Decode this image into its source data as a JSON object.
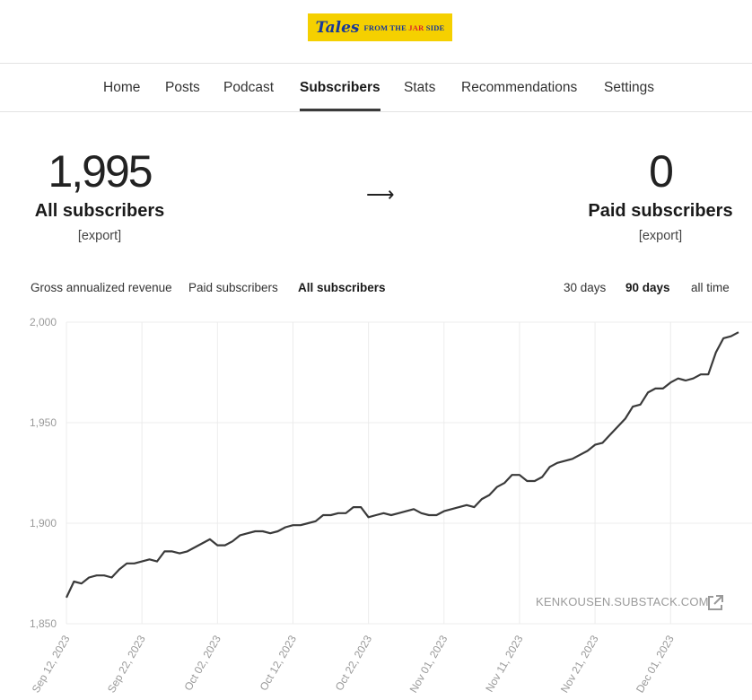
{
  "logo": {
    "main": "Tales",
    "tagline_pre": "FROM THE",
    "tagline_jar": "JAR",
    "tagline_post": "SIDE"
  },
  "nav": {
    "items": [
      {
        "label": "Home"
      },
      {
        "label": "Posts"
      },
      {
        "label": "Podcast"
      },
      {
        "label": "Subscribers",
        "active": true
      },
      {
        "label": "Stats"
      },
      {
        "label": "Recommendations"
      },
      {
        "label": "Settings"
      }
    ]
  },
  "summary": {
    "all": {
      "value": "1,995",
      "label": "All subscribers",
      "export": "[export]"
    },
    "arrow": "⟶",
    "paid": {
      "value": "0",
      "label": "Paid subscribers",
      "export": "[export]"
    }
  },
  "metric_tabs": [
    {
      "label": "Gross annualized revenue"
    },
    {
      "label": "Paid subscribers"
    },
    {
      "label": "All subscribers",
      "active": true
    }
  ],
  "range_tabs": [
    {
      "label": "30 days"
    },
    {
      "label": "90 days",
      "active": true
    },
    {
      "label": "all time"
    }
  ],
  "watermark": "KENKOUSEN.SUBSTACK.COM",
  "colors": {
    "line": "#3a3a3a",
    "grid": "#ececec",
    "logo_bg": "#f5d000",
    "logo_text": "#17389a",
    "logo_accent": "#d8242c"
  },
  "chart_data": {
    "type": "line",
    "ylim": [
      1850,
      2000
    ],
    "yticks": [
      {
        "value": 1850,
        "label": "1,850"
      },
      {
        "value": 1900,
        "label": "1,900"
      },
      {
        "value": 1950,
        "label": "1,950"
      },
      {
        "value": 2000,
        "label": "2,000"
      }
    ],
    "xticks": [
      "Sep 12, 2023",
      "Sep 22, 2023",
      "Oct 02, 2023",
      "Oct 12, 2023",
      "Oct 22, 2023",
      "Nov 01, 2023",
      "Nov 11, 2023",
      "Nov 21, 2023",
      "Dec 01, 2023"
    ],
    "series": [
      {
        "values": [
          1863,
          1871,
          1870,
          1873,
          1874,
          1874,
          1873,
          1877,
          1880,
          1880,
          1881,
          1882,
          1881,
          1886,
          1886,
          1885,
          1886,
          1888,
          1890,
          1892,
          1889,
          1889,
          1891,
          1894,
          1895,
          1896,
          1896,
          1895,
          1896,
          1898,
          1899,
          1899,
          1900,
          1901,
          1904,
          1904,
          1905,
          1905,
          1908,
          1908,
          1903,
          1904,
          1905,
          1904,
          1905,
          1906,
          1907,
          1905,
          1904,
          1904,
          1906,
          1907,
          1908,
          1909,
          1908,
          1912,
          1914,
          1918,
          1920,
          1924,
          1924,
          1921,
          1921,
          1923,
          1928,
          1930,
          1931,
          1932,
          1934,
          1936,
          1939,
          1940,
          1944,
          1948,
          1952,
          1958,
          1959,
          1965,
          1967,
          1967,
          1970,
          1972,
          1971,
          1972,
          1974,
          1974,
          1985,
          1992,
          1993,
          1995
        ]
      }
    ]
  }
}
